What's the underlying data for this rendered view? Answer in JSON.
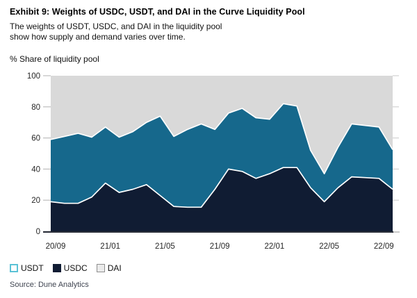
{
  "header": {
    "title": "Exhibit 9: Weights of USDC, USDT, and DAI in the Curve Liquidity Pool",
    "subtitle_line1": "The weights of USDT, USDC, and DAI in the liquidity pool",
    "subtitle_line2": "show how supply and demand varies over time.",
    "axis_unit": "% Share of liquidity pool"
  },
  "chart_data": {
    "type": "area",
    "stacked": true,
    "unit": "% share of liquidity pool",
    "title": "Weights of USDC, USDT, and DAI in the Curve Liquidity Pool",
    "categories": [
      "20/09",
      "20/10",
      "20/11",
      "20/12",
      "21/01",
      "21/02",
      "21/03",
      "21/04",
      "21/05",
      "21/06",
      "21/07",
      "21/08",
      "21/09",
      "21/10",
      "21/11",
      "21/12",
      "22/01",
      "22/02",
      "22/03",
      "22/04",
      "22/05",
      "22/06",
      "22/07",
      "22/08",
      "22/09",
      "22/10"
    ],
    "series": [
      {
        "name": "USDC",
        "color": "#101c33",
        "values": [
          19,
          18,
          18,
          22,
          31,
          25,
          27,
          30,
          23,
          16,
          15.5,
          15.5,
          27,
          40,
          38.5,
          34,
          37,
          41,
          41,
          28,
          19,
          28,
          35,
          34.5,
          34,
          27
        ]
      },
      {
        "name": "USDT",
        "color": "#16688c",
        "values": [
          40,
          43,
          45,
          38.5,
          36,
          35.5,
          37,
          40,
          51,
          45,
          50,
          53.5,
          38.5,
          36,
          40.5,
          39,
          35,
          41,
          39.5,
          24,
          18,
          26,
          34,
          33.5,
          33,
          25.5
        ]
      },
      {
        "name": "DAI",
        "color": "#d9d9d9",
        "values": [
          41,
          39,
          37,
          39.5,
          33,
          39.5,
          36,
          30,
          26,
          39,
          34.5,
          31,
          34.5,
          24,
          21,
          27,
          28,
          18,
          19.5,
          48,
          63,
          46,
          31,
          32,
          33,
          47.5
        ]
      }
    ],
    "ylim": [
      0,
      100
    ],
    "y_ticks": [
      0,
      20,
      40,
      60,
      80,
      100
    ],
    "x_tick_labels": [
      "20/09",
      "21/01",
      "21/05",
      "21/09",
      "22/01",
      "22/05",
      "22/09"
    ],
    "grid": false,
    "legend_position": "bottom-left",
    "boundary_stroke": "#ffffff"
  },
  "legend": {
    "items": [
      {
        "label": "USDT",
        "fill": "#ffffff",
        "border": "#5bc2d6"
      },
      {
        "label": "USDC",
        "fill": "#101c33",
        "border": "#101c33"
      },
      {
        "label": "DAI",
        "fill": "#ebebeb",
        "border": "#8f8f8f"
      }
    ]
  },
  "source": "Source: Dune Analytics"
}
